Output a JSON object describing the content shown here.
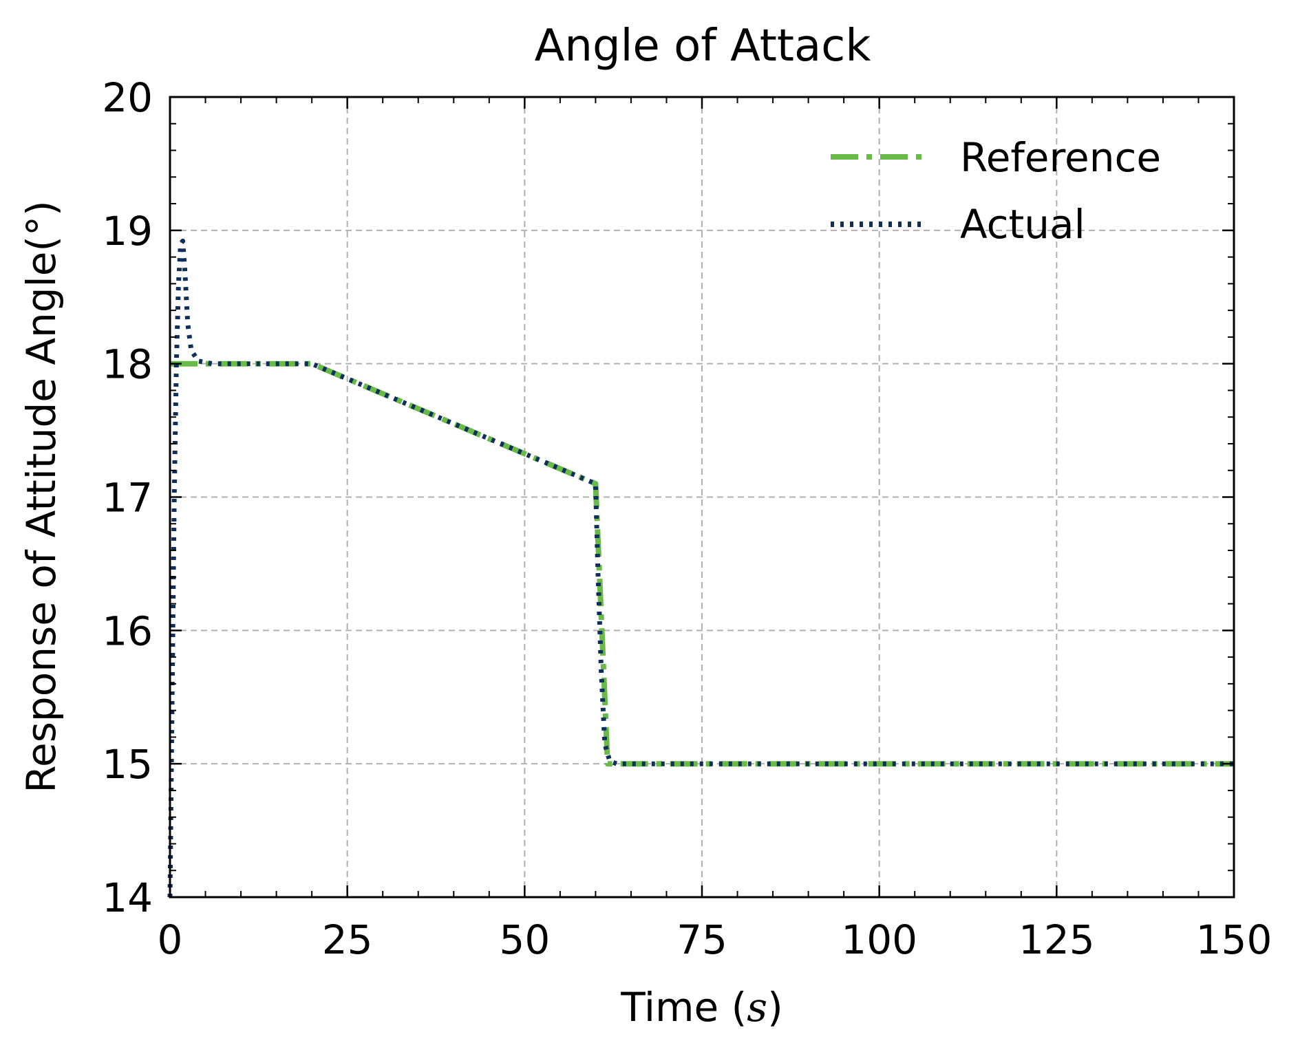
{
  "chart_data": {
    "type": "line",
    "title": "Angle of Attack",
    "xlabel": "Time (",
    "xlabel_var": "s",
    "xlabel_close": ")",
    "ylabel": "Response of Attitude Angle(°)",
    "xlim": [
      0,
      150
    ],
    "ylim": [
      14,
      20
    ],
    "xticks": [
      0,
      25,
      50,
      75,
      100,
      125,
      150
    ],
    "yticks": [
      14,
      15,
      16,
      17,
      18,
      19,
      20
    ],
    "grid": true,
    "legend_position": "top-right",
    "series": [
      {
        "name": "Reference",
        "color": "#6aba4a",
        "style": "dash-dot",
        "x": [
          0,
          20,
          60,
          61.7,
          150
        ],
        "y": [
          18.0,
          18.0,
          17.1,
          15.0,
          15.0
        ]
      },
      {
        "name": "Actual",
        "color": "#0e2f5a",
        "style": "dotted",
        "x": [
          0,
          0.3,
          0.6,
          0.9,
          1.2,
          1.5,
          1.8,
          2.1,
          2.5,
          3.0,
          4.0,
          6.0,
          20,
          60,
          60.3,
          60.8,
          61.3,
          62.0,
          63.0,
          150
        ],
        "y": [
          14.0,
          15.5,
          17.0,
          18.0,
          18.6,
          18.9,
          18.92,
          18.7,
          18.3,
          18.1,
          18.02,
          18.0,
          18.0,
          17.1,
          16.5,
          15.7,
          15.15,
          15.02,
          15.0,
          15.0
        ]
      }
    ]
  }
}
